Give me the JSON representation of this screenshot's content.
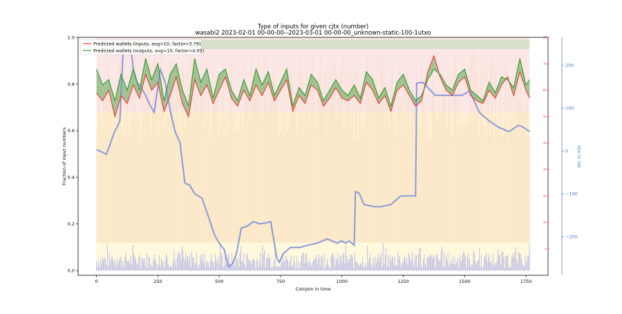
{
  "chart_data": {
    "type": "line",
    "title": "Type of inputs for given cjtx (number)",
    "subtitle": "wasabi2 2023-02-01 00-00-00--2023-03-01 00-00-00_unknown-static-100-1utxo",
    "xlabel": "Coinjoin in time",
    "ylabel": "Fraction of input numbers",
    "y2label": "btc in mix",
    "xlim": [
      -75,
      1840
    ],
    "ylim": [
      -0.02,
      1.0
    ],
    "y2lim": [
      -290,
      265
    ],
    "y3lim": [
      -10,
      80
    ],
    "xticks": [
      "0",
      "250",
      "500",
      "750",
      "1000",
      "1250",
      "1500",
      "1750"
    ],
    "yticks": [
      "0.0",
      "0.2",
      "0.4",
      "0.6",
      "0.8",
      "1.0"
    ],
    "y2ticks": [
      "−200",
      "−100",
      "0",
      "100",
      "200"
    ],
    "y3ticks": [
      "0",
      "10",
      "20",
      "30",
      "40",
      "50",
      "60",
      "70",
      "80"
    ],
    "legend": {
      "position": "top-left",
      "entries": [
        {
          "label": "Predicted wallets (inputs, avg=10, factor=3.79)",
          "color": "#e8423a"
        },
        {
          "label": "Predicted wallets (outputs, avg=10, factor=4.05)",
          "color": "#3a9a3a"
        }
      ]
    },
    "grid": false,
    "series": [
      {
        "name": "Predicted wallets (inputs, avg=10, factor=3.79)",
        "color": "#e8423a",
        "axis": "right_small",
        "x": [
          0,
          25,
          50,
          75,
          100,
          125,
          150,
          175,
          200,
          225,
          250,
          275,
          300,
          325,
          350,
          375,
          400,
          425,
          450,
          475,
          500,
          525,
          550,
          575,
          600,
          625,
          650,
          675,
          700,
          725,
          750,
          775,
          800,
          825,
          850,
          875,
          900,
          925,
          950,
          975,
          1000,
          1025,
          1050,
          1075,
          1100,
          1125,
          1150,
          1175,
          1200,
          1225,
          1250,
          1275,
          1300,
          1325,
          1350,
          1375,
          1400,
          1425,
          1450,
          1475,
          1500,
          1525,
          1550,
          1575,
          1600,
          1625,
          1650,
          1675,
          1700,
          1725,
          1750,
          1765
        ],
        "values": [
          59,
          56,
          60,
          50,
          58,
          55,
          62,
          57,
          66,
          60,
          63,
          52,
          58,
          65,
          55,
          50,
          64,
          58,
          62,
          55,
          60,
          65,
          57,
          54,
          60,
          56,
          62,
          58,
          63,
          56,
          60,
          64,
          52,
          58,
          55,
          62,
          60,
          54,
          57,
          61,
          57,
          56,
          58,
          55,
          63,
          60,
          55,
          58,
          52,
          60,
          62,
          58,
          54,
          56,
          67,
          73,
          65,
          60,
          58,
          63,
          65,
          58,
          56,
          55,
          60,
          57,
          62,
          65,
          58,
          67,
          60,
          57
        ]
      },
      {
        "name": "Predicted wallets (outputs, avg=10, factor=4.05)",
        "color": "#3a9a3a",
        "axis": "right_small",
        "x": [
          0,
          25,
          50,
          75,
          100,
          125,
          150,
          175,
          200,
          225,
          250,
          275,
          300,
          325,
          350,
          375,
          400,
          425,
          450,
          475,
          500,
          525,
          550,
          575,
          600,
          625,
          650,
          675,
          700,
          725,
          750,
          775,
          800,
          825,
          850,
          875,
          900,
          925,
          950,
          975,
          1000,
          1025,
          1050,
          1075,
          1100,
          1125,
          1150,
          1175,
          1200,
          1225,
          1250,
          1275,
          1300,
          1325,
          1350,
          1375,
          1400,
          1425,
          1450,
          1475,
          1500,
          1525,
          1550,
          1575,
          1600,
          1625,
          1650,
          1675,
          1700,
          1725,
          1750,
          1765
        ],
        "values": [
          68,
          62,
          64,
          56,
          66,
          60,
          68,
          60,
          72,
          64,
          70,
          56,
          66,
          70,
          60,
          54,
          72,
          63,
          68,
          57,
          66,
          68,
          60,
          56,
          64,
          58,
          68,
          62,
          67,
          58,
          63,
          68,
          54,
          61,
          58,
          66,
          63,
          56,
          60,
          64,
          60,
          58,
          62,
          57,
          67,
          64,
          57,
          61,
          54,
          63,
          66,
          60,
          56,
          58,
          64,
          68,
          66,
          62,
          60,
          66,
          68,
          60,
          58,
          56,
          63,
          59,
          65,
          64,
          61,
          72,
          62,
          64
        ]
      },
      {
        "name": "",
        "color": "#7d8fdc",
        "axis": "right",
        "x": [
          0,
          20,
          40,
          55,
          70,
          95,
          110,
          115,
          130,
          140,
          150,
          165,
          180,
          200,
          215,
          235,
          260,
          280,
          300,
          320,
          340,
          360,
          380,
          400,
          430,
          460,
          480,
          500,
          520,
          535,
          540,
          555,
          570,
          590,
          615,
          640,
          665,
          690,
          710,
          735,
          745,
          760,
          790,
          830,
          860,
          900,
          940,
          980,
          1000,
          1015,
          1030,
          1050,
          1055,
          1070,
          1090,
          1130,
          1160,
          1200,
          1240,
          1270,
          1290,
          1300,
          1305,
          1330,
          1380,
          1440,
          1490,
          1520,
          1560,
          1600,
          1640,
          1680,
          1720,
          1740,
          1765
        ],
        "values": [
          3,
          -2,
          -8,
          15,
          40,
          70,
          255,
          248,
          255,
          240,
          190,
          160,
          150,
          130,
          110,
          90,
          190,
          160,
          95,
          45,
          20,
          -75,
          -80,
          -100,
          -110,
          -160,
          -195,
          -215,
          -230,
          -265,
          -270,
          -262,
          -240,
          -180,
          -175,
          -165,
          -170,
          -168,
          -165,
          -250,
          -260,
          -240,
          -225,
          -225,
          -220,
          -215,
          -205,
          -215,
          -210,
          -215,
          -210,
          -220,
          -95,
          -98,
          -125,
          -130,
          -130,
          -125,
          -105,
          -105,
          -105,
          -105,
          158,
          160,
          130,
          130,
          130,
          140,
          90,
          70,
          55,
          45,
          60,
          55,
          45
        ]
      }
    ]
  }
}
